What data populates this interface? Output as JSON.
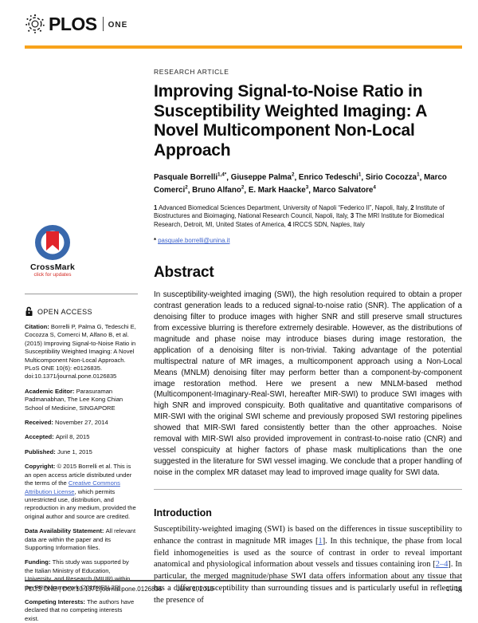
{
  "colors": {
    "accent_orange": "#F8A31C",
    "link_blue": "#3D63CC",
    "crossmark_blue": "#3968AC",
    "crossmark_red": "#E1252B"
  },
  "header": {
    "logo_plos": "PLOS",
    "logo_one": "ONE"
  },
  "article": {
    "kicker": "RESEARCH ARTICLE",
    "title": "Improving Signal-to-Noise Ratio in Susceptibility Weighted Imaging: A Novel Multicomponent Non-Local Approach"
  },
  "authors": [
    {
      "name": "Pasquale Borrelli",
      "sup": "1,4*"
    },
    {
      "name": "Giuseppe Palma",
      "sup": "2"
    },
    {
      "name": "Enrico Tedeschi",
      "sup": "1"
    },
    {
      "name": "Sirio Cocozza",
      "sup": "1"
    },
    {
      "name": "Marco Comerci",
      "sup": "2"
    },
    {
      "name": "Bruno Alfano",
      "sup": "2"
    },
    {
      "name": "E. Mark Haacke",
      "sup": "3"
    },
    {
      "name": "Marco Salvatore",
      "sup": "4"
    }
  ],
  "affiliations": [
    {
      "num": "1",
      "text": "Advanced Biomedical Sciences Department, University of Napoli “Federico II”, Napoli, Italy,"
    },
    {
      "num": "2",
      "text": "Institute of Biostructures and Bioimaging, National Research Council, Napoli, Italy,"
    },
    {
      "num": "3",
      "text": "The MRI Institute for Biomedical Research, Detroit, MI, United States of America,"
    },
    {
      "num": "4",
      "text": "IRCCS SDN, Naples, Italy"
    }
  ],
  "email": {
    "marker": "*",
    "address": "pasquale.borrelli@unina.it"
  },
  "crossmark": {
    "title": "CrossMark",
    "subtitle": "click for updates"
  },
  "open_access_label": "OPEN ACCESS",
  "sidebar": [
    {
      "label": "Citation:",
      "segments": [
        {
          "t": "text",
          "v": "Borrelli P, Palma G, Tedeschi E, Cocozza S, Comerci M, Alfano B, et al. (2015) Improving Signal-to-Noise Ratio in Susceptibility Weighted Imaging: A Novel Multicomponent Non-Local Approach. PLoS ONE 10(6): e0126835. doi:10.1371/journal.pone.0126835"
        }
      ]
    },
    {
      "label": "Academic Editor:",
      "segments": [
        {
          "t": "text",
          "v": "Parasuraman Padmanabhan, The Lee Kong Chian School of Medicine, SINGAPORE"
        }
      ]
    },
    {
      "label": "Received:",
      "segments": [
        {
          "t": "text",
          "v": "November 27, 2014"
        }
      ]
    },
    {
      "label": "Accepted:",
      "segments": [
        {
          "t": "text",
          "v": "April 8, 2015"
        }
      ]
    },
    {
      "label": "Published:",
      "segments": [
        {
          "t": "text",
          "v": "June 1, 2015"
        }
      ]
    },
    {
      "label": "Copyright:",
      "segments": [
        {
          "t": "text",
          "v": "© 2015 Borrelli et al. This is an open access article distributed under the terms of the "
        },
        {
          "t": "link",
          "v": "Creative Commons Attribution License"
        },
        {
          "t": "text",
          "v": ", which permits unrestricted use, distribution, and reproduction in any medium, provided the original author and source are credited."
        }
      ]
    },
    {
      "label": "Data Availability Statement:",
      "segments": [
        {
          "t": "text",
          "v": "All relevant data are within the paper and its Supporting Information files."
        }
      ]
    },
    {
      "label": "Funding:",
      "segments": [
        {
          "t": "text",
          "v": "This study was supported by the Italian Ministry of Education, University, and Research (MIUR) within the PRIN framework (2010XE5L2R)."
        }
      ]
    },
    {
      "label": "Competing Interests:",
      "segments": [
        {
          "t": "text",
          "v": "The authors have declared that no competing interests exist."
        }
      ]
    }
  ],
  "abstract": {
    "heading": "Abstract",
    "body": "In susceptibility-weighted imaging (SWI), the high resolution required to obtain a proper contrast generation leads to a reduced signal-to-noise ratio (SNR). The application of a denoising filter to produce images with higher SNR and still preserve small structures from excessive blurring is therefore extremely desirable. However, as the distributions of magnitude and phase noise may introduce biases during image restoration, the application of a denoising filter is non-trivial. Taking advantage of the potential multispectral nature of MR images, a multicomponent approach using a Non-Local Means (MNLM) denoising filter may perform better than a component-by-component image restoration method. Here we present a new MNLM-based method (Multicomponent-Imaginary-Real-SWI, hereafter MIR-SWI) to produce SWI images with high SNR and improved conspicuity. Both qualitative and quantitative comparisons of MIR-SWI with the original SWI scheme and previously proposed SWI restoring pipelines showed that MIR-SWI fared consistently better than the other approaches. Noise removal with MIR-SWI also provided improvement in contrast-to-noise ratio (CNR) and vessel conspicuity at higher factors of phase mask multiplications than the one suggested in the literature for SWI vessel imaging. We conclude that a proper handling of noise in the complex MR dataset may lead to improved image quality for SWI data."
  },
  "introduction": {
    "heading": "Introduction",
    "segments": [
      {
        "t": "text",
        "v": "Susceptibility-weighted imaging (SWI) is based on the differences in tissue susceptibility to enhance the contrast in magnitude MR images ["
      },
      {
        "t": "link",
        "v": "1"
      },
      {
        "t": "text",
        "v": "]. In this technique, the phase from local field inhomogeneities is used as the source of contrast in order to reveal important anatomical and physiological information about vessels and tissues containing iron ["
      },
      {
        "t": "link",
        "v": "2–4"
      },
      {
        "t": "text",
        "v": "]. In particular, the merged magnitude/phase SWI data offers information about any tissue that has a different susceptibility than surrounding tissues and is particularly useful in reflecting the presence of"
      }
    ]
  },
  "footer": {
    "brand": "PLOS ONE",
    "separator": "|",
    "doi": "DOI:10.1371/journal.pone.0126835",
    "date": "June 1, 2015",
    "page": "1 / 16"
  }
}
